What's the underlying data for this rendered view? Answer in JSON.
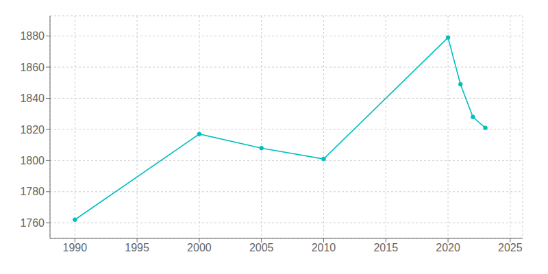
{
  "chart_data": {
    "type": "line",
    "x": [
      1990,
      2000,
      2005,
      2010,
      2020,
      2021,
      2022,
      2023
    ],
    "values": [
      1762,
      1817,
      1808,
      1801,
      1879,
      1849,
      1828,
      1821
    ],
    "color": "#00bfbf",
    "marker": "circle",
    "xlim": [
      1988,
      2026
    ],
    "ylim": [
      1750,
      1893
    ],
    "xticks": [
      1990,
      1995,
      2000,
      2005,
      2010,
      2015,
      2020,
      2025
    ],
    "yticks": [
      1760,
      1780,
      1800,
      1820,
      1840,
      1860,
      1880
    ],
    "grid": true
  }
}
